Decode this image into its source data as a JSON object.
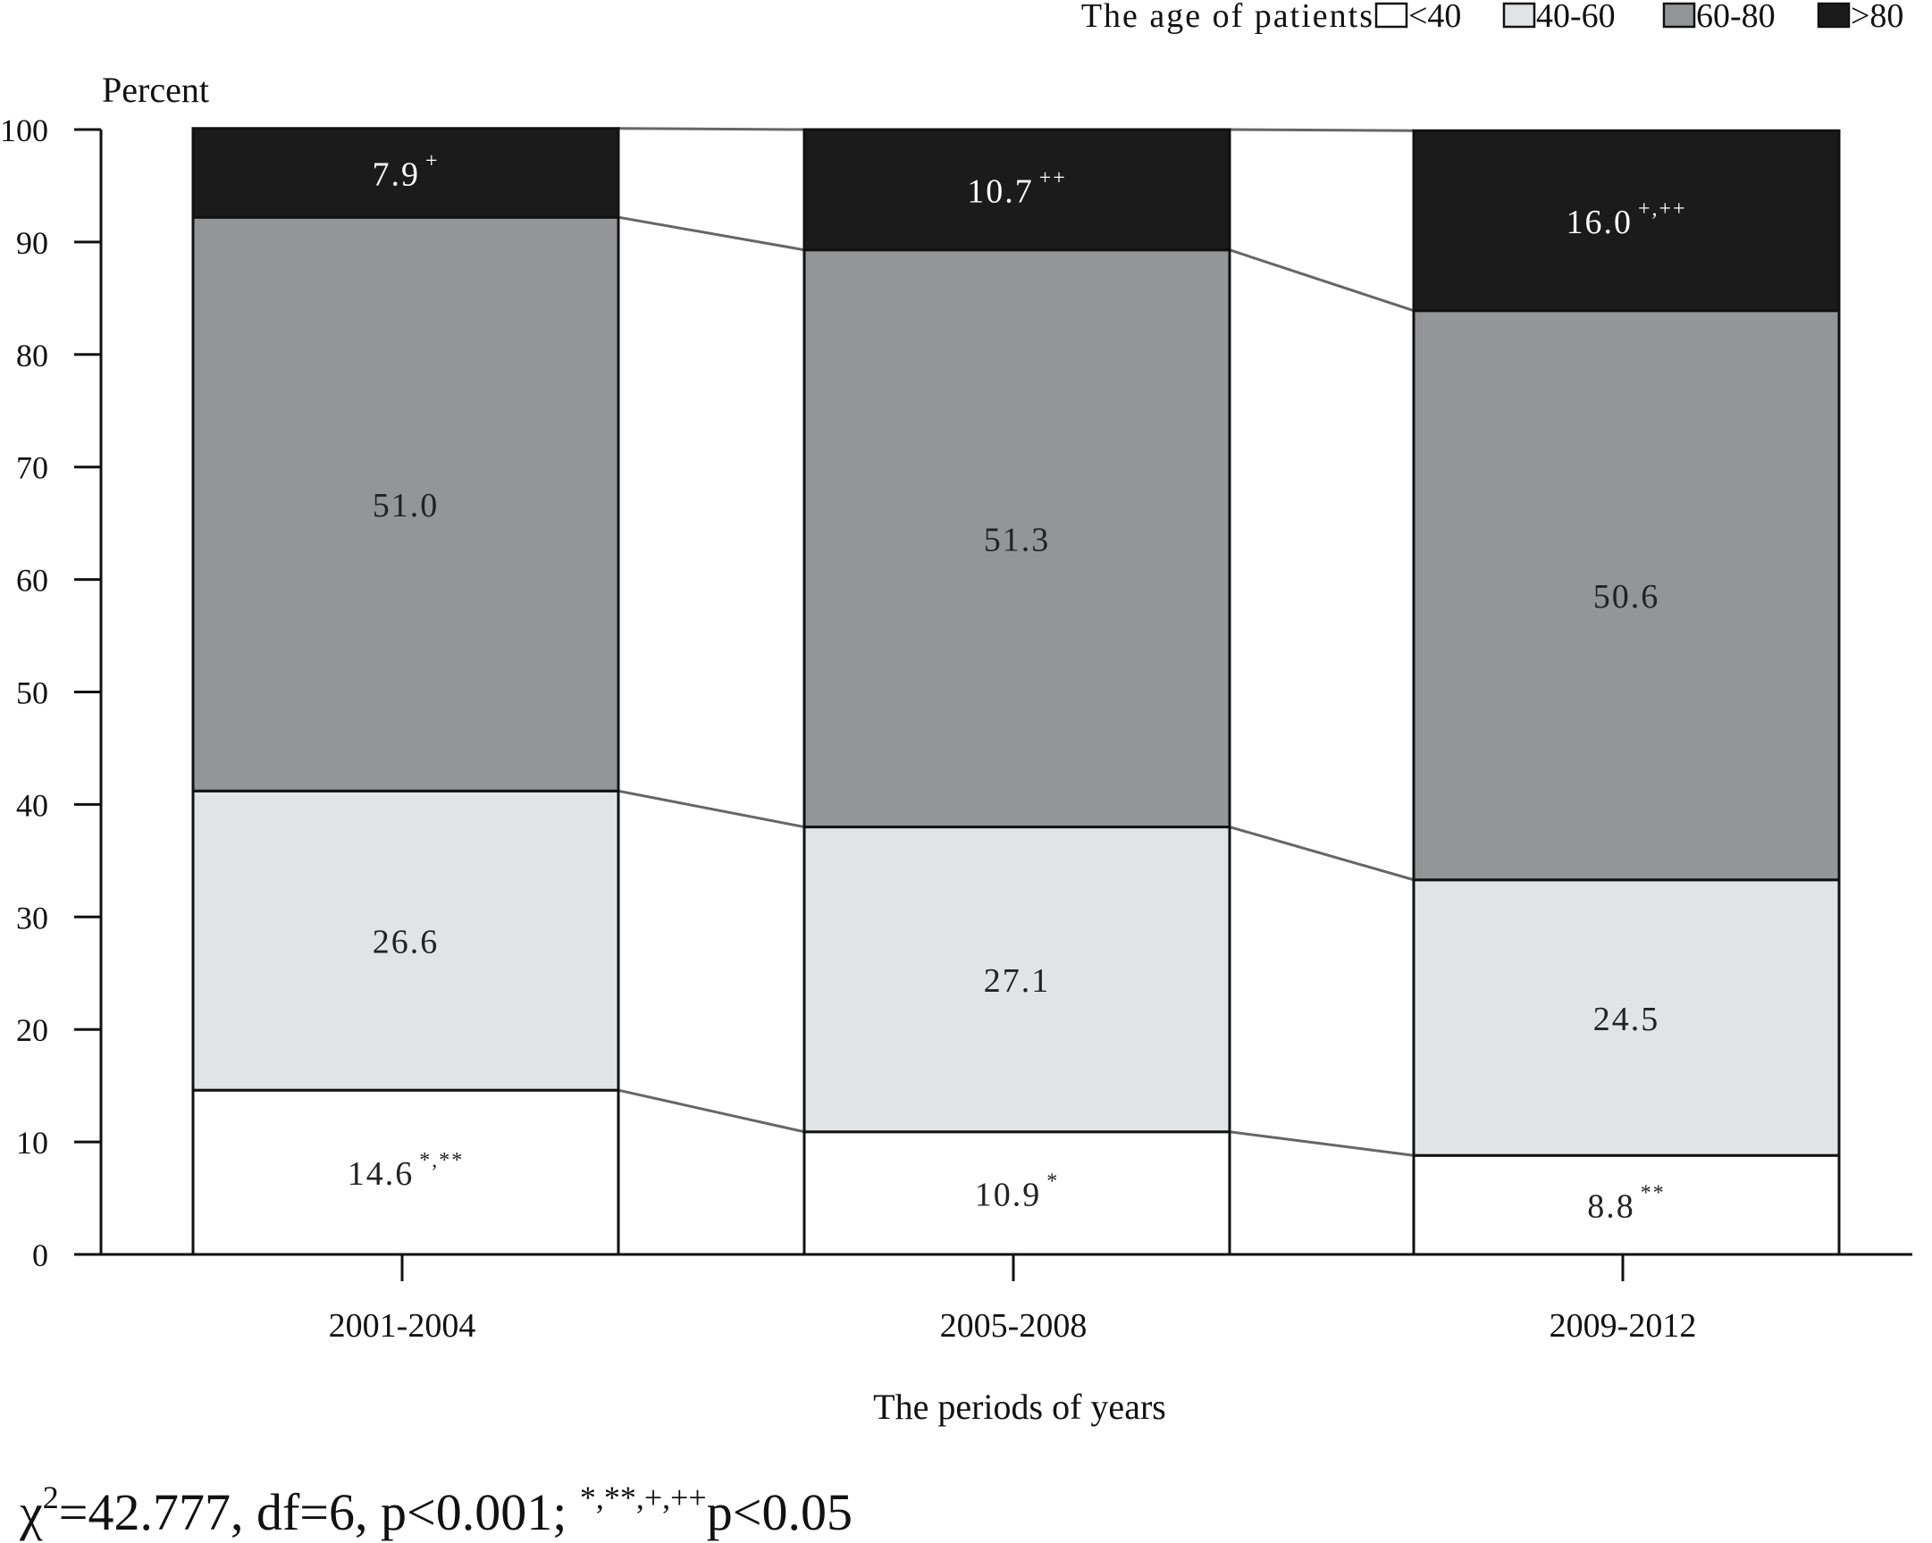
{
  "chart_data": {
    "type": "bar",
    "stacked": true,
    "title": "",
    "xlabel": "The periods of years",
    "ylabel": "Percent",
    "ylim": [
      0,
      100
    ],
    "yticks": [
      0,
      10,
      20,
      30,
      40,
      50,
      60,
      70,
      80,
      90,
      100
    ],
    "grid": false,
    "legend_title": "The age of patients",
    "legend_position": "top-right",
    "categories": [
      "2001-2004",
      "2005-2008",
      "2009-2012"
    ],
    "series": [
      {
        "name": "<40",
        "color": "#ffffff",
        "values": [
          14.6,
          10.9,
          8.8
        ],
        "labels": [
          "14.6",
          "10.9",
          "8.8"
        ],
        "marks": [
          "*,**",
          "*",
          "**"
        ]
      },
      {
        "name": "40-60",
        "color": "#e2e3e5",
        "values": [
          26.6,
          27.1,
          24.5
        ],
        "labels": [
          "26.6",
          "27.1",
          "24.5"
        ],
        "marks": [
          "",
          "",
          ""
        ]
      },
      {
        "name": "60-80",
        "color": "#949596",
        "values": [
          51.0,
          51.3,
          50.6
        ],
        "labels": [
          "51.0",
          "51.3",
          "50.6"
        ],
        "marks": [
          "",
          "",
          ""
        ]
      },
      {
        "name": ">80",
        "color": "#1b1b1b",
        "values": [
          7.9,
          10.7,
          16.0
        ],
        "labels": [
          "7.9",
          "10.7",
          "16.0"
        ],
        "marks": [
          "+",
          "++",
          "+,++"
        ]
      }
    ],
    "footnote": {
      "chi": "χ",
      "chi_exp": "2",
      "stat": "=42.777, df=6, p<0.001; ",
      "marks": "*,**,+,++",
      "p": "p<0.05"
    }
  }
}
